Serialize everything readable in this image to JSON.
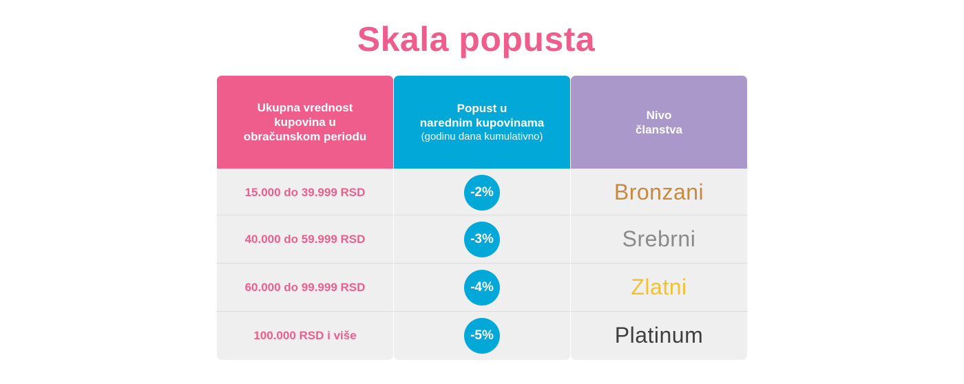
{
  "title": "Skala popusta",
  "headers": {
    "col1": [
      "Ukupna vrednost",
      "kupovina u",
      "obračunskom periodu"
    ],
    "col2": [
      "Popust u",
      "narednim kupovinama"
    ],
    "col2_sub": "(godinu dana kumulativno)",
    "col3": [
      "Nivo",
      "članstva"
    ]
  },
  "rows": [
    {
      "amount": "15.000 do 39.999 RSD",
      "discount": "-2%",
      "level": "Bronzani",
      "level_color": "#c8893e"
    },
    {
      "amount": "40.000 do 59.999 RSD",
      "discount": "-3%",
      "level": "Srebrni",
      "level_color": "#8a8a8a"
    },
    {
      "amount": "60.000 do 99.999 RSD",
      "discount": "-4%",
      "level": "Zlatni",
      "level_color": "#f2c12e"
    },
    {
      "amount": "100.000 RSD i više",
      "discount": "-5%",
      "level": "Platinum",
      "level_color": "#3e3e3e"
    }
  ],
  "colors": {
    "pink": "#ef5d8c",
    "blue": "#02a9d8",
    "lavender": "#a998c9",
    "row_bg": "#efefef"
  }
}
